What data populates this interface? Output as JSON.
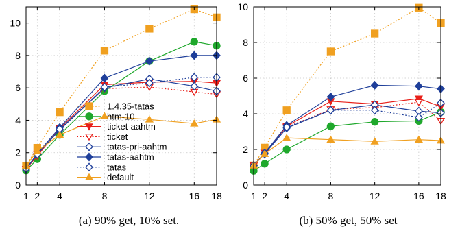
{
  "chart_data": [
    {
      "type": "line",
      "caption": "(a) 90% get, 10% set.",
      "x": [
        1,
        2,
        4,
        8,
        12,
        16,
        18
      ],
      "xticks": [
        1,
        2,
        4,
        8,
        12,
        16,
        18
      ],
      "ylim": [
        0,
        11
      ],
      "yticks": [
        0,
        2,
        4,
        6,
        8,
        10
      ],
      "xlim": [
        1,
        18
      ],
      "grid": true,
      "legend_position": "inside-bottom-center",
      "series": [
        {
          "name": "1.4.35-tatas",
          "values": [
            1.2,
            2.3,
            4.5,
            8.3,
            9.65,
            10.85,
            10.35
          ]
        },
        {
          "name": "htm-10",
          "values": [
            0.9,
            1.6,
            3.1,
            5.8,
            7.65,
            8.85,
            8.6
          ]
        },
        {
          "name": "ticket-aahtm",
          "values": [
            1.0,
            1.8,
            3.5,
            6.2,
            6.35,
            6.4,
            6.3
          ]
        },
        {
          "name": "ticket",
          "values": [
            1.0,
            1.9,
            3.45,
            5.95,
            6.05,
            5.75,
            5.6
          ]
        },
        {
          "name": "tatas-pri-aahtm",
          "values": [
            1.0,
            1.9,
            3.4,
            6.0,
            6.55,
            6.1,
            5.8
          ]
        },
        {
          "name": "tatas-aahtm",
          "values": [
            1.0,
            1.95,
            3.55,
            6.6,
            7.65,
            8.0,
            8.0
          ]
        },
        {
          "name": "tatas",
          "values": [
            1.0,
            1.9,
            3.45,
            6.05,
            6.3,
            6.65,
            6.65
          ]
        },
        {
          "name": "default",
          "values": [
            1.2,
            2.1,
            3.1,
            4.25,
            4.05,
            3.8,
            4.05
          ]
        }
      ]
    },
    {
      "type": "line",
      "caption": "(b) 50% get, 50% set",
      "x": [
        1,
        2,
        4,
        8,
        12,
        16,
        18
      ],
      "xticks": [
        1,
        2,
        4,
        8,
        12,
        16,
        18
      ],
      "ylim": [
        0,
        10
      ],
      "yticks": [
        0,
        2,
        4,
        6,
        8,
        10
      ],
      "xlim": [
        1,
        18
      ],
      "grid": true,
      "series": [
        {
          "name": "1.4.35-tatas",
          "values": [
            1.1,
            2.1,
            4.2,
            7.5,
            8.5,
            9.95,
            9.1
          ]
        },
        {
          "name": "htm-10",
          "values": [
            0.8,
            1.2,
            2.0,
            3.3,
            3.55,
            3.6,
            4.1
          ]
        },
        {
          "name": "ticket-aahtm",
          "values": [
            1.1,
            1.8,
            3.3,
            4.7,
            4.55,
            4.85,
            4.4
          ]
        },
        {
          "name": "ticket",
          "values": [
            1.1,
            1.8,
            3.25,
            4.25,
            4.35,
            4.65,
            3.6
          ]
        },
        {
          "name": "tatas-pri-aahtm",
          "values": [
            1.1,
            1.75,
            3.2,
            4.2,
            4.5,
            4.15,
            4.05
          ]
        },
        {
          "name": "tatas-aahtm",
          "values": [
            1.1,
            1.8,
            3.35,
            4.95,
            5.6,
            5.55,
            5.4
          ]
        },
        {
          "name": "tatas",
          "values": [
            1.1,
            1.75,
            3.25,
            4.2,
            4.2,
            3.8,
            4.6
          ]
        },
        {
          "name": "default",
          "values": [
            1.1,
            1.75,
            2.65,
            2.55,
            2.45,
            2.55,
            2.5
          ]
        }
      ]
    }
  ],
  "styles": {
    "1.4.35-tatas": {
      "color": "#f0a020",
      "marker": "square",
      "dash": "dot",
      "fill": true
    },
    "htm-10": {
      "color": "#1fa82c",
      "marker": "circle",
      "dash": "solid",
      "fill": true
    },
    "ticket-aahtm": {
      "color": "#e8201a",
      "marker": "triangle-down",
      "dash": "solid",
      "fill": true
    },
    "ticket": {
      "color": "#e8201a",
      "marker": "triangle-down",
      "dash": "dot",
      "fill": false
    },
    "tatas-pri-aahtm": {
      "color": "#1f3f9a",
      "marker": "diamond",
      "dash": "solid",
      "fill": false
    },
    "tatas-aahtm": {
      "color": "#1f3f9a",
      "marker": "diamond",
      "dash": "solid",
      "fill": true
    },
    "tatas": {
      "color": "#1f3f9a",
      "marker": "diamond",
      "dash": "dot",
      "fill": false
    },
    "default": {
      "color": "#f0a020",
      "marker": "triangle-up",
      "dash": "solid",
      "fill": true
    }
  }
}
